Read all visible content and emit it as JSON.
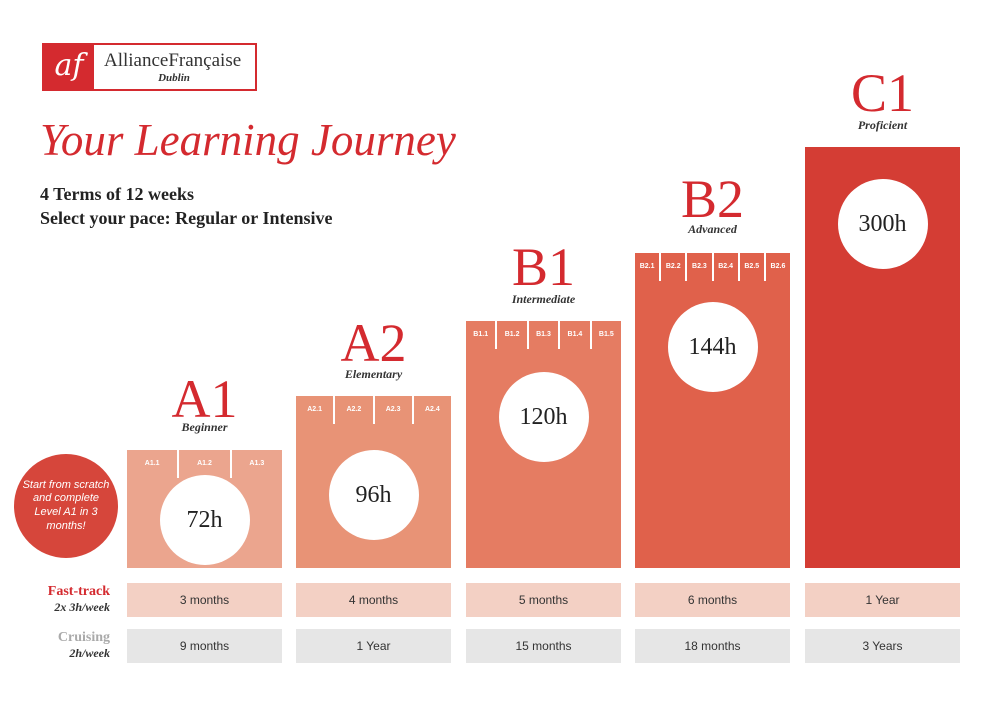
{
  "logo": {
    "mark": "af",
    "name": "AllianceFrançaise",
    "city": "Dublin"
  },
  "title": "Your Learning Journey",
  "subtitle_lines": [
    "4 Terms of 12 weeks",
    "Select your pace: Regular or Intensive"
  ],
  "promo": "Start from scratch and complete Level A1 in 3 months!",
  "rows": {
    "fast_track": {
      "label": "Fast-track",
      "sub": "2x 3h/week"
    },
    "cruising": {
      "label": "Cruising",
      "sub": "2h/week"
    }
  },
  "levels": [
    {
      "code": "A1",
      "name": "Beginner",
      "hours": "72h",
      "sublevels": [
        "A1.1",
        "A1.2",
        "A1.3"
      ],
      "fast_track": "3 months",
      "cruising": "9 months",
      "color": "#eba58e"
    },
    {
      "code": "A2",
      "name": "Elementary",
      "hours": "96h",
      "sublevels": [
        "A2.1",
        "A2.2",
        "A2.3",
        "A2.4"
      ],
      "fast_track": "4 months",
      "cruising": "1 Year",
      "color": "#e89376"
    },
    {
      "code": "B1",
      "name": "Intermediate",
      "hours": "120h",
      "sublevels": [
        "B1.1",
        "B1.2",
        "B1.3",
        "B1.4",
        "B1.5"
      ],
      "fast_track": "5 months",
      "cruising": "15 months",
      "color": "#e57c62"
    },
    {
      "code": "B2",
      "name": "Advanced",
      "hours": "144h",
      "sublevels": [
        "B2.1",
        "B2.2",
        "B2.3",
        "B2.4",
        "B2.5",
        "B2.6"
      ],
      "fast_track": "6 months",
      "cruising": "18 months",
      "color": "#e0614b"
    },
    {
      "code": "C1",
      "name": "Proficient",
      "hours": "300h",
      "sublevels": [],
      "fast_track": "1 Year",
      "cruising": "3 Years",
      "color": "#d43d34"
    }
  ]
}
